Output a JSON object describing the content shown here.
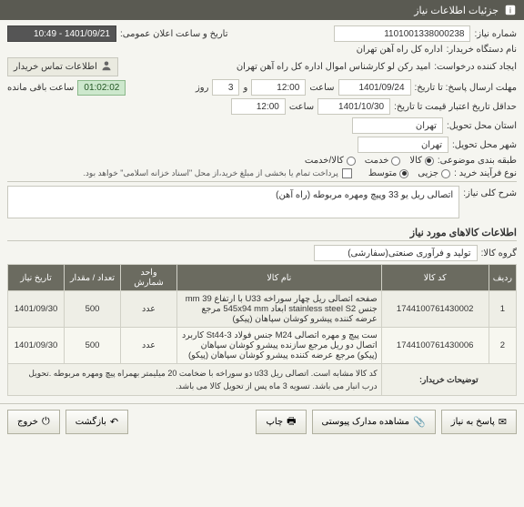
{
  "header": {
    "title": "جزئیات اطلاعات نیاز"
  },
  "form": {
    "need_no_label": "شماره نیاز:",
    "need_no": "1101001338000238",
    "announce_label": "تاریخ و ساعت اعلان عمومی:",
    "announce_value": "1401/09/21 - 10:49",
    "buyer_label": "نام دستگاه خریدار:",
    "buyer": "اداره کل راه آهن تهران",
    "requester_label": "ایجاد کننده درخواست:",
    "requester": "امید رکن لو کارشناس اموال اداره کل راه آهن تهران",
    "contact_box": "اطلاعات تماس خریدار",
    "deadline_label": "مهلت ارسال پاسخ: تا تاریخ:",
    "deadline_date": "1401/09/24",
    "time_label": "ساعت",
    "deadline_time": "12:00",
    "and": "و",
    "days": "3",
    "days_unit_label": "روز",
    "remain_label": "ساعت باقی مانده",
    "remain_time": "01:02:02",
    "validity_label": "حداقل تاریخ اعتبار قیمت تا تاریخ:",
    "validity_date": "1401/10/30",
    "validity_time": "12:00",
    "delivery_prov_label": "استان محل تحویل:",
    "delivery_prov": "تهران",
    "delivery_city_label": "شهر محل تحویل:",
    "delivery_city": "تهران",
    "category_label": "طبقه بندی موضوعی:",
    "cat_opts": [
      "کالا",
      "خدمت",
      "کالا/خدمت"
    ],
    "cat_selected": 0,
    "buy_type_label": "نوع فرآیند خرید :",
    "buy_opts": [
      "جزیی",
      "متوسط"
    ],
    "buy_selected": 1,
    "pay_check_label": "پرداخت تمام یا بخشی از مبلغ خرید،از محل \"اسناد خزانه اسلامی\" خواهد بود.",
    "summary_label": "شرح کلی نیاز:",
    "summary": "اتصالی ریل یو 33 وپیچ ومهره مربوطه (راه آهن)"
  },
  "goods": {
    "section_title": "اطلاعات کالاهای مورد نیاز",
    "group_label": "گروه کالا:",
    "group_value": "تولید و فرآوری صنعتی(سفارشی)",
    "columns": [
      "ردیف",
      "کد کالا",
      "نام کالا",
      "واحد شمارش",
      "تعداد / مقدار",
      "تاریخ نیاز"
    ],
    "col_widths": [
      "28px",
      "118px",
      "auto",
      "62px",
      "62px",
      "62px"
    ],
    "rows": [
      {
        "idx": "1",
        "code": "1744100761430002",
        "name": "صفحه اتصالی ریل چهار سوراخه U33 با ارتفاع 39 mm جنس stainless steel S2 ابعاد 545x94 mm مرجع عرضه کننده پیشرو کوشان سپاهان (پیکو)",
        "unit": "عدد",
        "qty": "500",
        "date": "1401/09/30"
      },
      {
        "idx": "2",
        "code": "1744100761430006",
        "name": "ست پیچ و مهره اتصالی M24 جنس فولاد St44-3 کاربرد اتصال دو ریل مرجع سازنده پیشرو کوشان سپاهان (پیکو) مرجع عرضه کننده پیشرو کوشان سپاهان (پیکو)",
        "unit": "عدد",
        "qty": "500",
        "date": "1401/09/30"
      }
    ],
    "notes_label": "توضیحات خریدار:",
    "notes": "کد کالا مشابه است. اتصالی ریل u33 دو سوراخه با ضخامت 20 میلیمتر بهمراه پیچ ومهره مربوطه .تحویل درب انبار می باشد. تسویه 3 ماه پس از تحویل کالا می باشد."
  },
  "footer": {
    "reply": "پاسخ به نیاز",
    "docs": "مشاهده مدارک پیوستی",
    "print": "چاپ",
    "back": "بازگشت",
    "exit": "خروج"
  },
  "colors": {
    "header_bg": "#5a5a52",
    "th_bg": "#6b6b60",
    "remain_bg": "#cde8cd"
  }
}
